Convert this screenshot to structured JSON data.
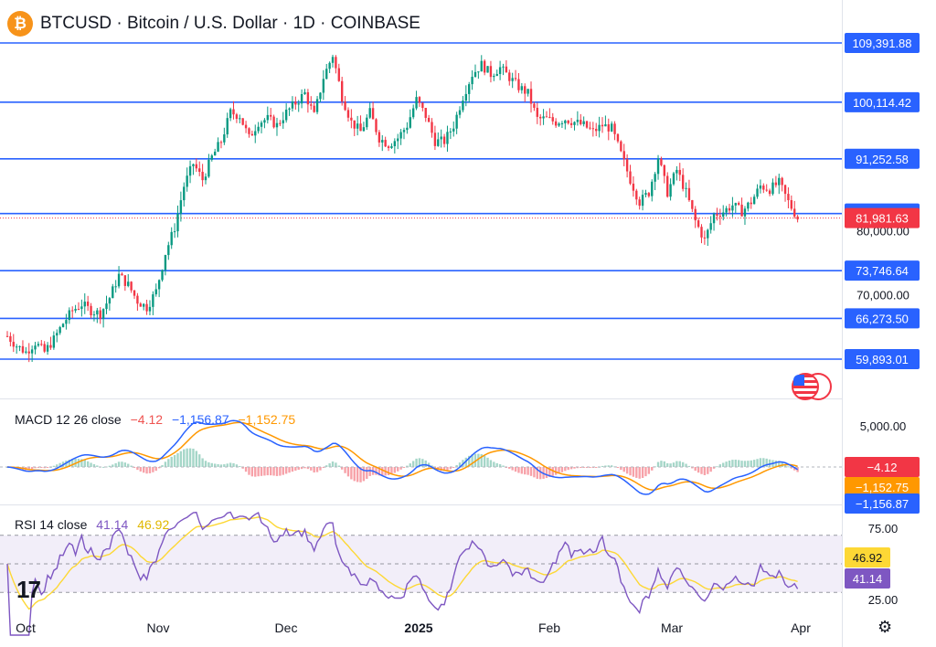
{
  "header": {
    "title": "BTCUSD · Bitcoin / U.S. Dollar · 1D · COINBASE",
    "icon": "bitcoin-icon"
  },
  "macd_label": {
    "name": "MACD 12 26 close",
    "hist": "−4.12",
    "macd": "−1,156.87",
    "signal": "−1,152.75"
  },
  "rsi_label": {
    "name": "RSI 14 close",
    "rsi": "41.14",
    "ma": "46.92"
  },
  "colors": {
    "up": "#089981",
    "down": "#f23645",
    "level": "#2962ff",
    "macd": "#2962ff",
    "signal": "#ff9800",
    "rsi": "#7e57c2",
    "rsi_ma": "#fdd835"
  },
  "chart_data": [
    {
      "type": "candlestick",
      "timeframe": "1D",
      "x_ticks": [
        "Oct",
        "Nov",
        "Dec",
        "2025",
        "Feb",
        "Mar",
        "Apr"
      ],
      "y_ticks": [
        "80,000.00",
        "70,000.00"
      ],
      "levels": [
        "109,391.88",
        "100,114.42",
        "91,252.58",
        "82,688.52",
        "73,746.64",
        "66,273.50",
        "59,893.01"
      ],
      "level_values": [
        109391.88,
        100114.42,
        91252.58,
        82688.52,
        73746.64,
        66273.5,
        59893.01
      ],
      "last_price": "81,981.63",
      "last_price_value": 81981.63,
      "ylim": [
        58500,
        111000
      ],
      "series_close_approx": [
        [
          0,
          63500
        ],
        [
          3,
          62000
        ],
        [
          6,
          61000
        ],
        [
          9,
          62500
        ],
        [
          12,
          61000
        ],
        [
          15,
          63000
        ],
        [
          18,
          65500
        ],
        [
          21,
          67500
        ],
        [
          24,
          68500
        ],
        [
          27,
          67500
        ],
        [
          30,
          67000
        ],
        [
          33,
          69500
        ],
        [
          36,
          73000
        ],
        [
          39,
          71500
        ],
        [
          42,
          69000
        ],
        [
          45,
          68000
        ],
        [
          48,
          70500
        ],
        [
          51,
          76500
        ],
        [
          54,
          80500
        ],
        [
          57,
          87000
        ],
        [
          60,
          90500
        ],
        [
          63,
          88000
        ],
        [
          66,
          91500
        ],
        [
          69,
          94000
        ],
        [
          72,
          98500
        ],
        [
          75,
          98000
        ],
        [
          78,
          94500
        ],
        [
          81,
          97000
        ],
        [
          84,
          97500
        ],
        [
          87,
          96500
        ],
        [
          90,
          98500
        ],
        [
          93,
          100000
        ],
        [
          96,
          101500
        ],
        [
          99,
          98000
        ],
        [
          102,
          104000
        ],
        [
          105,
          107500
        ],
        [
          108,
          101000
        ],
        [
          111,
          97000
        ],
        [
          114,
          95500
        ],
        [
          117,
          98500
        ],
        [
          120,
          94500
        ],
        [
          123,
          93500
        ],
        [
          126,
          94500
        ],
        [
          129,
          96500
        ],
        [
          132,
          100500
        ],
        [
          135,
          98000
        ],
        [
          138,
          94000
        ],
        [
          141,
          94000
        ],
        [
          144,
          96500
        ],
        [
          147,
          101000
        ],
        [
          150,
          104500
        ],
        [
          153,
          106000
        ],
        [
          156,
          104500
        ],
        [
          159,
          105500
        ],
        [
          162,
          104000
        ],
        [
          165,
          102500
        ],
        [
          168,
          101500
        ],
        [
          171,
          97500
        ],
        [
          174,
          97500
        ],
        [
          177,
          97000
        ],
        [
          180,
          97500
        ],
        [
          183,
          97000
        ],
        [
          186,
          96500
        ],
        [
          189,
          95500
        ],
        [
          192,
          96500
        ],
        [
          195,
          96000
        ],
        [
          198,
          92000
        ],
        [
          201,
          88000
        ],
        [
          204,
          84500
        ],
        [
          207,
          86000
        ],
        [
          210,
          91500
        ],
        [
          213,
          86000
        ],
        [
          216,
          89500
        ],
        [
          219,
          86000
        ],
        [
          222,
          81500
        ],
        [
          225,
          78500
        ],
        [
          228,
          82500
        ],
        [
          231,
          83000
        ],
        [
          234,
          84000
        ],
        [
          237,
          83000
        ],
        [
          240,
          84500
        ],
        [
          243,
          87000
        ],
        [
          246,
          86500
        ],
        [
          249,
          87500
        ],
        [
          252,
          84500
        ],
        [
          255,
          82000
        ]
      ]
    },
    {
      "type": "line",
      "title": "MACD 12 26 close",
      "y_ticks": [
        "5,000.00"
      ],
      "last_values": [
        "−4.12",
        "−1,152.75",
        "−1,156.87"
      ]
    },
    {
      "type": "line",
      "title": "RSI 14 close",
      "y_ticks": [
        "75.00",
        "25.00"
      ],
      "band": [
        30,
        70
      ],
      "last_values": [
        "46.92",
        "41.14"
      ]
    }
  ]
}
